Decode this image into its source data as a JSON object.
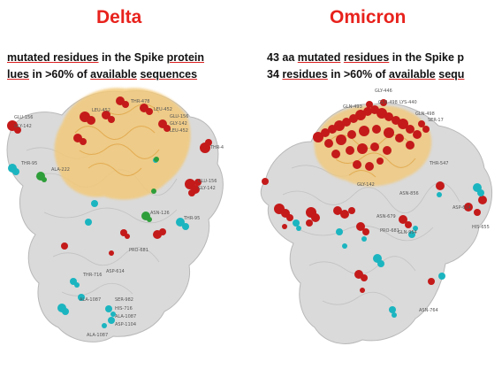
{
  "panels": {
    "left": {
      "title": "Delta",
      "caption_line1_parts": [
        "mutated ",
        "residues",
        " in the ",
        "Spike",
        " ",
        "protein"
      ],
      "caption_line2_parts": [
        "lues",
        " in >60% of ",
        "available",
        " ",
        "sequences"
      ]
    },
    "right": {
      "title": "Omicron",
      "caption_line1_parts": [
        "43 aa ",
        "mutated",
        " ",
        "residues",
        " in the Spike p"
      ],
      "caption_line2_parts": [
        "34 ",
        "residues",
        " in >60% of ",
        "available",
        " ",
        "sequ"
      ]
    }
  },
  "colors": {
    "title": "#e8221d",
    "protein": "#d9d9d9",
    "rbd": "#f2c97a",
    "mutation_red": "#c41a1a",
    "mutation_cyan": "#1bb5c0",
    "mutation_green": "#2e9e3a"
  }
}
